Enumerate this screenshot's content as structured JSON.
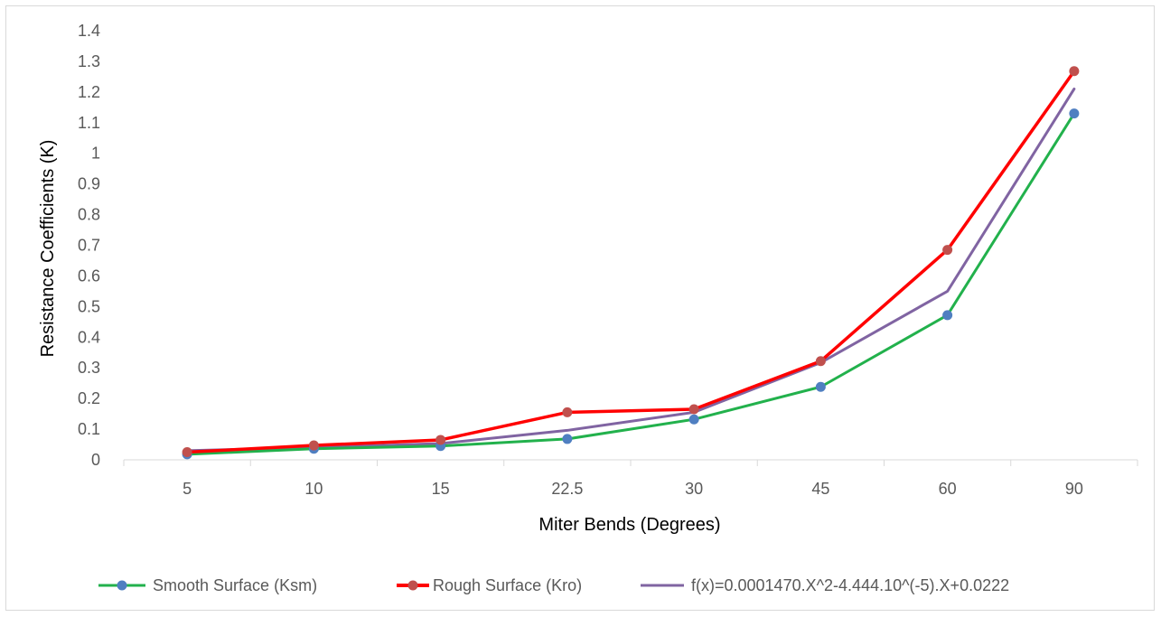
{
  "chart_data": {
    "type": "line",
    "categories": [
      "5",
      "10",
      "15",
      "22.5",
      "30",
      "45",
      "60",
      "90"
    ],
    "xlabel": "Miter Bends (Degrees)",
    "ylabel": "Resistance Coefficients (K)",
    "ylim": [
      0,
      1.4
    ],
    "yticks": [
      "0",
      "0.1",
      "0.2",
      "0.3",
      "0.4",
      "0.5",
      "0.6",
      "0.7",
      "0.8",
      "0.9",
      "1",
      "1.1",
      "1.2",
      "1.3",
      "1.4"
    ],
    "grid": false,
    "legend_position": "bottom",
    "series": [
      {
        "name": "Smooth Surface (Ksm)",
        "color": "#22b14c",
        "marker_color": "#4f7fc1",
        "markers": true,
        "values": [
          0.018,
          0.036,
          0.045,
          0.068,
          0.132,
          0.238,
          0.472,
          1.13
        ]
      },
      {
        "name": "Rough Surface (Kro)",
        "color": "#ff0000",
        "marker_color": "#c0504d",
        "markers": true,
        "values": [
          0.025,
          0.047,
          0.065,
          0.155,
          0.165,
          0.322,
          0.685,
          1.268
        ]
      },
      {
        "name": "f(x)=0.0001470.X^2-4.444.10^(-5).X+0.0222",
        "color": "#8064a2",
        "markers": false,
        "values": [
          0.03,
          0.04,
          0.053,
          0.096,
          0.155,
          0.317,
          0.55,
          1.21
        ]
      }
    ]
  }
}
